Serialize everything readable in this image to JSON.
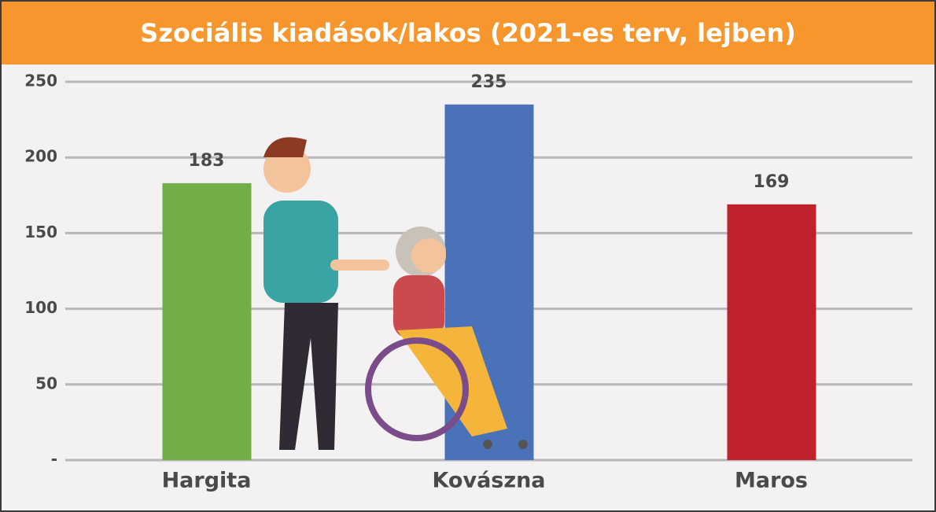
{
  "chart_data": {
    "type": "bar",
    "title": "Szociális kiadások/lakos (2021-es terv, lejben)",
    "categories": [
      "Hargita",
      "Kovászna",
      "Maros"
    ],
    "values": [
      183,
      235,
      169
    ],
    "colors": [
      "#72ad46",
      "#4a72b8",
      "#c0212a"
    ],
    "ylim": [
      0,
      250
    ],
    "yticks": [
      {
        "value": 0,
        "label": "-"
      },
      50,
      100,
      150,
      200,
      250
    ],
    "grid": true
  }
}
